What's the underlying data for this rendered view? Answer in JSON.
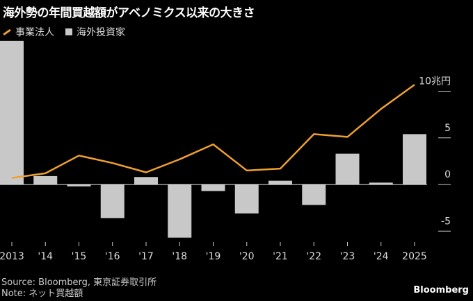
{
  "title": "海外勢の年間買越額がアベノミクス以来の大きさ",
  "footer": {
    "source": "Source: Bloomberg, 東京証券取引所",
    "note": "Note: ネット買越額",
    "brand": "Bloomberg"
  },
  "chart_data": {
    "type": "bar+line",
    "categories": [
      "2013",
      "'14",
      "'15",
      "'16",
      "'17",
      "'18",
      "'19",
      "'20",
      "'21",
      "'22",
      "'23",
      "'24",
      "2025"
    ],
    "series": [
      {
        "name": "事業法人",
        "type": "line",
        "color": "#f0a030",
        "values": [
          0.7,
          1.2,
          3.1,
          2.3,
          1.3,
          2.7,
          4.3,
          1.5,
          1.7,
          5.4,
          5.1,
          8.1,
          10.7
        ]
      },
      {
        "name": "海外投資家",
        "type": "bar",
        "color": "#c8c8c8",
        "values": [
          15.4,
          0.9,
          -0.2,
          -3.6,
          0.8,
          -5.7,
          -0.7,
          -3.1,
          0.4,
          -2.2,
          3.3,
          0.2,
          5.4
        ]
      }
    ],
    "yticks": [
      {
        "v": 10,
        "label": "10兆円"
      },
      {
        "v": 5,
        "label": "5"
      },
      {
        "v": 0,
        "label": "0"
      },
      {
        "v": -5,
        "label": "-5"
      }
    ],
    "ylim": [
      -6,
      15.4
    ],
    "legend": "top-left"
  }
}
